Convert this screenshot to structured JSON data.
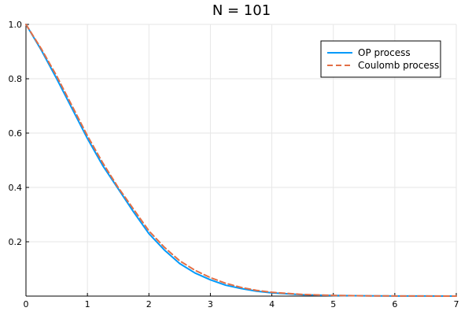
{
  "chart_data": {
    "type": "line",
    "title": "N = 101",
    "xlabel": "",
    "ylabel": "",
    "xlim": [
      0,
      7
    ],
    "ylim": [
      0,
      1.0
    ],
    "x_ticks": [
      "0",
      "1",
      "2",
      "3",
      "4",
      "5",
      "6",
      "7"
    ],
    "y_ticks": [
      "0.2",
      "0.4",
      "0.6",
      "0.8",
      "1.0"
    ],
    "y_tick_values": [
      0.2,
      0.4,
      0.6,
      0.8,
      1.0
    ],
    "grid": true,
    "legend_position": "top-right",
    "x": [
      0,
      0.25,
      0.5,
      0.75,
      1.0,
      1.25,
      1.5,
      1.75,
      2.0,
      2.25,
      2.5,
      2.75,
      3.0,
      3.25,
      3.5,
      3.75,
      4.0,
      4.5,
      5.0,
      5.5,
      6.0,
      6.5,
      7.0
    ],
    "series": [
      {
        "name": "OP process",
        "color": "#009AFA",
        "dash": "solid",
        "values": [
          1.0,
          0.905,
          0.8,
          0.69,
          0.58,
          0.48,
          0.395,
          0.31,
          0.23,
          0.17,
          0.12,
          0.085,
          0.06,
          0.04,
          0.028,
          0.018,
          0.012,
          0.005,
          0.002,
          0.001,
          0.0005,
          0.0002,
          0.0001
        ]
      },
      {
        "name": "Coulomb process",
        "color": "#E26F46",
        "dash": "dashed",
        "values": [
          1.0,
          0.91,
          0.81,
          0.7,
          0.59,
          0.49,
          0.4,
          0.32,
          0.24,
          0.18,
          0.13,
          0.095,
          0.068,
          0.047,
          0.032,
          0.021,
          0.014,
          0.006,
          0.0025,
          0.001,
          0.0005,
          0.0002,
          0.0001
        ]
      }
    ]
  }
}
